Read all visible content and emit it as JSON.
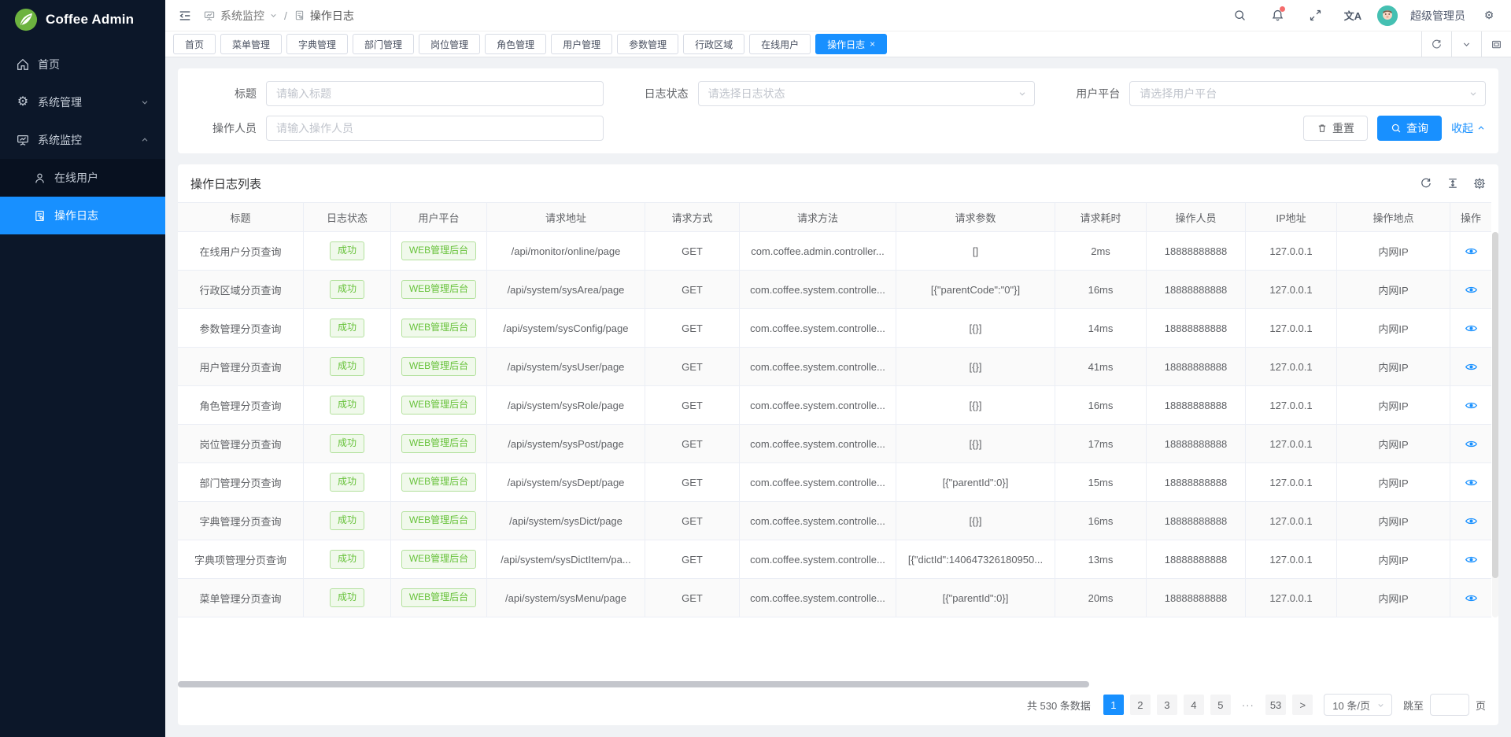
{
  "app": {
    "name": "Coffee Admin"
  },
  "sidebar": {
    "items": [
      {
        "id": "home",
        "label": "首页"
      },
      {
        "id": "system-management",
        "label": "系统管理",
        "state": "collapsed"
      },
      {
        "id": "system-monitor",
        "label": "系统监控",
        "state": "expanded"
      }
    ],
    "submenu": [
      {
        "id": "online-users",
        "label": "在线用户",
        "active": false
      },
      {
        "id": "operation-log",
        "label": "操作日志",
        "active": true
      }
    ]
  },
  "header": {
    "breadcrumb": {
      "parent": "系统监控",
      "separator": "/",
      "current": "操作日志"
    },
    "translate_glyph": "文A",
    "user": {
      "name": "超级管理员"
    },
    "gear_glyph": "⚙"
  },
  "tabs": {
    "close_glyph": "×",
    "items": [
      {
        "label": "首页"
      },
      {
        "label": "菜单管理"
      },
      {
        "label": "字典管理"
      },
      {
        "label": "部门管理"
      },
      {
        "label": "岗位管理"
      },
      {
        "label": "角色管理"
      },
      {
        "label": "用户管理"
      },
      {
        "label": "参数管理"
      },
      {
        "label": "行政区域"
      },
      {
        "label": "在线用户"
      },
      {
        "label": "操作日志",
        "active": true
      }
    ]
  },
  "filters": {
    "fields": [
      {
        "label": "标题",
        "placeholder": "请输入标题",
        "type": "input"
      },
      {
        "label": "日志状态",
        "placeholder": "请选择日志状态",
        "type": "select"
      },
      {
        "label": "用户平台",
        "placeholder": "请选择用户平台",
        "type": "select"
      },
      {
        "label": "操作人员",
        "placeholder": "请输入操作人员",
        "type": "input"
      }
    ],
    "reset_label": "重置",
    "search_label": "查询",
    "collapse_label": "收起"
  },
  "table": {
    "title": "操作日志列表",
    "columns": [
      {
        "key": "title",
        "label": "标题",
        "type": "text"
      },
      {
        "key": "status",
        "label": "日志状态",
        "type": "tag"
      },
      {
        "key": "platform",
        "label": "用户平台",
        "type": "tag"
      },
      {
        "key": "url",
        "label": "请求地址",
        "type": "text"
      },
      {
        "key": "method",
        "label": "请求方式",
        "type": "text"
      },
      {
        "key": "handler",
        "label": "请求方法",
        "type": "text"
      },
      {
        "key": "params",
        "label": "请求参数",
        "type": "text"
      },
      {
        "key": "time",
        "label": "请求耗时",
        "type": "text"
      },
      {
        "key": "operator",
        "label": "操作人员",
        "type": "text"
      },
      {
        "key": "ip",
        "label": "IP地址",
        "type": "text"
      },
      {
        "key": "location",
        "label": "操作地点",
        "type": "text"
      },
      {
        "key": "action",
        "label": "操作",
        "type": "action"
      }
    ],
    "rows": [
      {
        "title": "在线用户分页查询",
        "status": "成功",
        "platform": "WEB管理后台",
        "url": "/api/monitor/online/page",
        "method": "GET",
        "handler": "com.coffee.admin.controller...",
        "params": "[]",
        "time": "2ms",
        "operator": "18888888888",
        "ip": "127.0.0.1",
        "location": "内网IP"
      },
      {
        "title": "行政区域分页查询",
        "status": "成功",
        "platform": "WEB管理后台",
        "url": "/api/system/sysArea/page",
        "method": "GET",
        "handler": "com.coffee.system.controlle...",
        "params": "[{\"parentCode\":\"0\"}]",
        "time": "16ms",
        "operator": "18888888888",
        "ip": "127.0.0.1",
        "location": "内网IP"
      },
      {
        "title": "参数管理分页查询",
        "status": "成功",
        "platform": "WEB管理后台",
        "url": "/api/system/sysConfig/page",
        "method": "GET",
        "handler": "com.coffee.system.controlle...",
        "params": "[{}]",
        "time": "14ms",
        "operator": "18888888888",
        "ip": "127.0.0.1",
        "location": "内网IP"
      },
      {
        "title": "用户管理分页查询",
        "status": "成功",
        "platform": "WEB管理后台",
        "url": "/api/system/sysUser/page",
        "method": "GET",
        "handler": "com.coffee.system.controlle...",
        "params": "[{}]",
        "time": "41ms",
        "operator": "18888888888",
        "ip": "127.0.0.1",
        "location": "内网IP"
      },
      {
        "title": "角色管理分页查询",
        "status": "成功",
        "platform": "WEB管理后台",
        "url": "/api/system/sysRole/page",
        "method": "GET",
        "handler": "com.coffee.system.controlle...",
        "params": "[{}]",
        "time": "16ms",
        "operator": "18888888888",
        "ip": "127.0.0.1",
        "location": "内网IP"
      },
      {
        "title": "岗位管理分页查询",
        "status": "成功",
        "platform": "WEB管理后台",
        "url": "/api/system/sysPost/page",
        "method": "GET",
        "handler": "com.coffee.system.controlle...",
        "params": "[{}]",
        "time": "17ms",
        "operator": "18888888888",
        "ip": "127.0.0.1",
        "location": "内网IP"
      },
      {
        "title": "部门管理分页查询",
        "status": "成功",
        "platform": "WEB管理后台",
        "url": "/api/system/sysDept/page",
        "method": "GET",
        "handler": "com.coffee.system.controlle...",
        "params": "[{\"parentId\":0}]",
        "time": "15ms",
        "operator": "18888888888",
        "ip": "127.0.0.1",
        "location": "内网IP"
      },
      {
        "title": "字典管理分页查询",
        "status": "成功",
        "platform": "WEB管理后台",
        "url": "/api/system/sysDict/page",
        "method": "GET",
        "handler": "com.coffee.system.controlle...",
        "params": "[{}]",
        "time": "16ms",
        "operator": "18888888888",
        "ip": "127.0.0.1",
        "location": "内网IP"
      },
      {
        "title": "字典项管理分页查询",
        "status": "成功",
        "platform": "WEB管理后台",
        "url": "/api/system/sysDictItem/pa...",
        "method": "GET",
        "handler": "com.coffee.system.controlle...",
        "params": "[{\"dictId\":140647326180950...",
        "time": "13ms",
        "operator": "18888888888",
        "ip": "127.0.0.1",
        "location": "内网IP"
      },
      {
        "title": "菜单管理分页查询",
        "status": "成功",
        "platform": "WEB管理后台",
        "url": "/api/system/sysMenu/page",
        "method": "GET",
        "handler": "com.coffee.system.controlle...",
        "params": "[{\"parentId\":0}]",
        "time": "20ms",
        "operator": "18888888888",
        "ip": "127.0.0.1",
        "location": "内网IP"
      }
    ]
  },
  "pagination": {
    "total_text": "共 530 条数据",
    "pages": [
      {
        "label": "1",
        "active": true
      },
      {
        "label": "2"
      },
      {
        "label": "3"
      },
      {
        "label": "4"
      },
      {
        "label": "5"
      },
      {
        "label": "···",
        "ellipsis": true
      },
      {
        "label": "53"
      },
      {
        "label": ">",
        "next": true
      }
    ],
    "page_size": "10 条/页",
    "jump_label": "跳至",
    "jump_unit": "页",
    "jump_value": ""
  },
  "colors": {
    "accent": "#1890ff",
    "success": "#67c23a",
    "sidebar_bg": "#0c1729",
    "notification_badge": "#f56c6c"
  }
}
